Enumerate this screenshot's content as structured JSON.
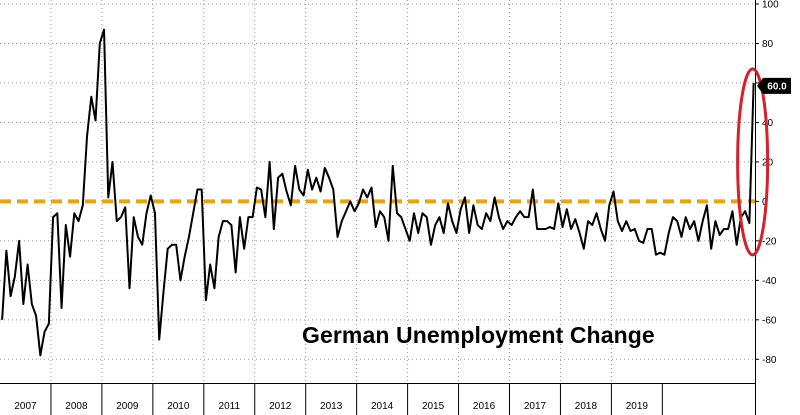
{
  "chart_data": {
    "type": "line",
    "title": "German Unemployment Change",
    "xlabel": "",
    "ylabel": "",
    "x_tick_labels": [
      "2007",
      "2008",
      "2009",
      "2010",
      "2011",
      "2012",
      "2013",
      "2014",
      "2015",
      "2016",
      "2017",
      "2018",
      "2019"
    ],
    "y_tick_labels": [
      "100",
      "80",
      "60",
      "40",
      "20",
      "0",
      "-20",
      "-40",
      "-60",
      "-80"
    ],
    "y_ticks": [
      100,
      80,
      60,
      40,
      20,
      0,
      -20,
      -40,
      -60,
      -80
    ],
    "ylim": [
      -92,
      102
    ],
    "x_start": "2007-01",
    "grid": true,
    "grid_style": "dotted",
    "y_axis_side": "right",
    "reference_line": {
      "value": 0,
      "color": "#e8a317",
      "style": "dashed"
    },
    "last_value_label": "60.0",
    "highlight": {
      "shape": "ellipse",
      "color": "#d6202a",
      "around": "last-point"
    },
    "line_color": "#000000",
    "series": [
      {
        "values": [
          -60,
          -25,
          -48,
          -38,
          -20,
          -52,
          -32,
          -52,
          -58,
          -78,
          -66,
          -62,
          -8,
          -6,
          -54,
          -12,
          -28,
          -6,
          -10,
          -2,
          33,
          53,
          41,
          80,
          87,
          2,
          20,
          -10,
          -8,
          -3,
          -44,
          -8,
          -18,
          -22,
          -6,
          3,
          -6,
          -70,
          -46,
          -24,
          -22,
          -22,
          -40,
          -28,
          -18,
          -6,
          6,
          6,
          -50,
          -32,
          -44,
          -18,
          -10,
          -10,
          -12,
          -36,
          -8,
          -24,
          -8,
          -8,
          7,
          6,
          -8,
          20,
          -14,
          12,
          14,
          5,
          -2,
          18,
          6,
          3,
          16,
          6,
          12,
          5,
          17,
          12,
          6,
          -18,
          -10,
          -5,
          0,
          -5,
          -1,
          6,
          2,
          7,
          -13,
          -5,
          -8,
          -20,
          18,
          -6,
          -8,
          -14,
          -20,
          -6,
          -16,
          -6,
          -8,
          -22,
          -12,
          -8,
          -16,
          -1,
          -10,
          -16,
          -4,
          2,
          -16,
          -2,
          -12,
          -14,
          -6,
          -10,
          2,
          -8,
          -14,
          -10,
          -12,
          -8,
          -5,
          -8,
          -8,
          6,
          -14,
          -14,
          -14,
          -13,
          -14,
          -1,
          -13,
          -4,
          -14,
          -9,
          -16,
          -24,
          -10,
          -12,
          -6,
          -14,
          -20,
          -2,
          5,
          -10,
          -15,
          -10,
          -15,
          -14,
          -20,
          -21,
          -14,
          -14,
          -27,
          -26,
          -27,
          -16,
          -8,
          -10,
          -18,
          -8,
          -14,
          -10,
          -20,
          -10,
          -2,
          -24,
          -10,
          -17,
          -14,
          -14,
          -5,
          -22,
          -8,
          -5,
          -11,
          60
        ]
      }
    ]
  }
}
